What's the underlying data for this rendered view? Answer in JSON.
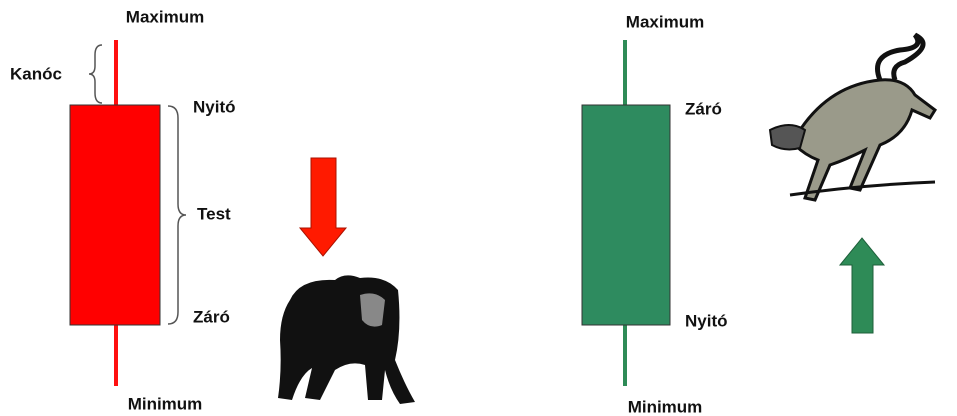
{
  "bearish": {
    "top_label": "Maximum",
    "wick_label": "Kanóc",
    "open_label": "Nyitó",
    "body_label": "Test",
    "close_label": "Záró",
    "bottom_label": "Minimum"
  },
  "bullish": {
    "top_label": "Maximum",
    "close_label": "Záró",
    "open_label": "Nyitó",
    "bottom_label": "Minimum"
  }
}
